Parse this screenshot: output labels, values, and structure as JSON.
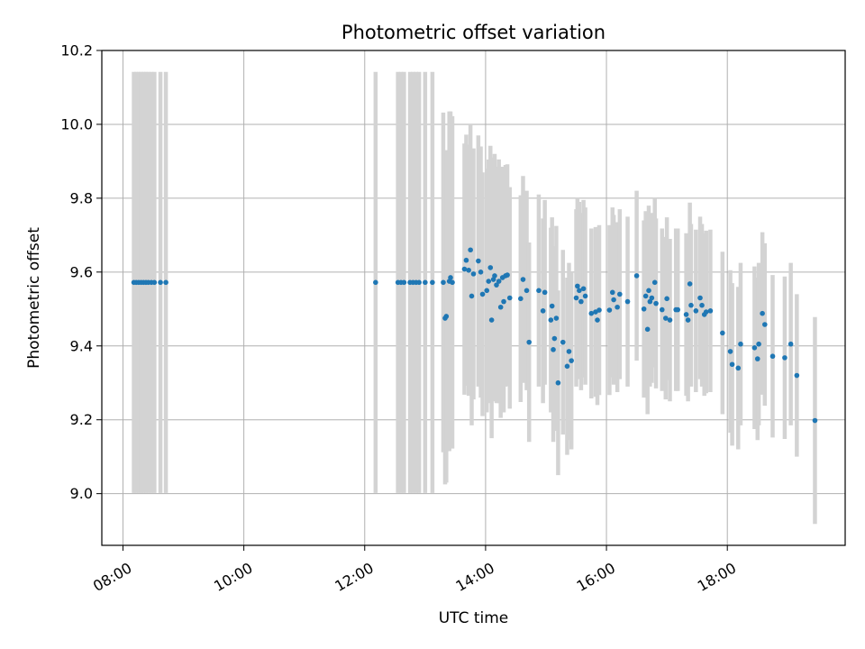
{
  "chart_data": {
    "type": "scatter",
    "title": "Photometric offset variation",
    "xlabel": "UTC time",
    "ylabel": "Photometric offset",
    "x_unit": "hours UTC",
    "xlim": [
      7.65,
      19.95
    ],
    "ylim": [
      8.86,
      10.2
    ],
    "x_ticks": [
      8,
      10,
      12,
      14,
      16,
      18
    ],
    "x_tick_labels": [
      "08:00",
      "10:00",
      "12:00",
      "14:00",
      "16:00",
      "18:00"
    ],
    "y_ticks": [
      9.0,
      9.2,
      9.4,
      9.6,
      9.8,
      10.0,
      10.2
    ],
    "y_tick_labels": [
      "9.0",
      "9.2",
      "9.4",
      "9.6",
      "9.8",
      "10.0",
      "10.2"
    ],
    "grid": true,
    "point_color": "#1f77b4",
    "errorbar_color": "#d3d3d3",
    "points": [
      [
        8.18,
        9.572,
        0.57
      ],
      [
        8.22,
        9.572,
        0.57
      ],
      [
        8.26,
        9.572,
        0.57
      ],
      [
        8.3,
        9.572,
        0.57
      ],
      [
        8.34,
        9.572,
        0.57
      ],
      [
        8.38,
        9.572,
        0.57
      ],
      [
        8.42,
        9.572,
        0.57
      ],
      [
        8.47,
        9.572,
        0.57
      ],
      [
        8.52,
        9.572,
        0.57
      ],
      [
        8.62,
        9.572,
        0.57
      ],
      [
        8.71,
        9.572,
        0.57
      ],
      [
        12.18,
        9.572,
        0.57
      ],
      [
        12.55,
        9.572,
        0.57
      ],
      [
        12.6,
        9.572,
        0.57
      ],
      [
        12.65,
        9.572,
        0.57
      ],
      [
        12.75,
        9.572,
        0.57
      ],
      [
        12.8,
        9.572,
        0.57
      ],
      [
        12.85,
        9.572,
        0.57
      ],
      [
        12.9,
        9.572,
        0.57
      ],
      [
        13.0,
        9.572,
        0.57
      ],
      [
        13.12,
        9.572,
        0.57
      ],
      [
        13.3,
        9.572,
        0.46
      ],
      [
        13.33,
        9.475,
        0.45
      ],
      [
        13.35,
        9.48,
        0.45
      ],
      [
        13.4,
        9.575,
        0.46
      ],
      [
        13.42,
        9.585,
        0.45
      ],
      [
        13.45,
        9.572,
        0.45
      ],
      [
        13.65,
        9.608,
        0.34
      ],
      [
        13.68,
        9.632,
        0.34
      ],
      [
        13.72,
        9.605,
        0.34
      ],
      [
        13.75,
        9.66,
        0.34
      ],
      [
        13.77,
        9.535,
        0.35
      ],
      [
        13.8,
        9.595,
        0.34
      ],
      [
        13.88,
        9.63,
        0.34
      ],
      [
        13.92,
        9.6,
        0.34
      ],
      [
        13.95,
        9.54,
        0.33
      ],
      [
        14.02,
        9.55,
        0.33
      ],
      [
        14.05,
        9.575,
        0.33
      ],
      [
        14.08,
        9.612,
        0.33
      ],
      [
        14.1,
        9.47,
        0.32
      ],
      [
        14.13,
        9.58,
        0.33
      ],
      [
        14.15,
        9.59,
        0.33
      ],
      [
        14.18,
        9.565,
        0.32
      ],
      [
        14.22,
        9.575,
        0.33
      ],
      [
        14.25,
        9.505,
        0.3
      ],
      [
        14.28,
        9.585,
        0.3
      ],
      [
        14.3,
        9.52,
        0.3
      ],
      [
        14.33,
        9.59,
        0.3
      ],
      [
        14.36,
        9.592,
        0.3
      ],
      [
        14.4,
        9.53,
        0.3
      ],
      [
        14.58,
        9.528,
        0.28
      ],
      [
        14.62,
        9.58,
        0.28
      ],
      [
        14.68,
        9.55,
        0.27
      ],
      [
        14.72,
        9.41,
        0.27
      ],
      [
        14.88,
        9.55,
        0.26
      ],
      [
        14.95,
        9.495,
        0.25
      ],
      [
        14.98,
        9.545,
        0.25
      ],
      [
        15.08,
        9.47,
        0.25
      ],
      [
        15.1,
        9.508,
        0.24
      ],
      [
        15.12,
        9.39,
        0.25
      ],
      [
        15.14,
        9.42,
        0.25
      ],
      [
        15.17,
        9.475,
        0.25
      ],
      [
        15.2,
        9.3,
        0.25
      ],
      [
        15.28,
        9.41,
        0.25
      ],
      [
        15.35,
        9.345,
        0.24
      ],
      [
        15.38,
        9.385,
        0.24
      ],
      [
        15.42,
        9.36,
        0.24
      ],
      [
        15.5,
        9.53,
        0.24
      ],
      [
        15.52,
        9.562,
        0.24
      ],
      [
        15.55,
        9.55,
        0.24
      ],
      [
        15.58,
        9.52,
        0.24
      ],
      [
        15.62,
        9.555,
        0.24
      ],
      [
        15.65,
        9.535,
        0.24
      ],
      [
        15.75,
        9.488,
        0.23
      ],
      [
        15.82,
        9.492,
        0.23
      ],
      [
        15.85,
        9.47,
        0.23
      ],
      [
        15.88,
        9.497,
        0.23
      ],
      [
        16.05,
        9.497,
        0.23
      ],
      [
        16.1,
        9.545,
        0.23
      ],
      [
        16.12,
        9.525,
        0.23
      ],
      [
        16.18,
        9.505,
        0.23
      ],
      [
        16.22,
        9.54,
        0.23
      ],
      [
        16.35,
        9.52,
        0.23
      ],
      [
        16.5,
        9.59,
        0.23
      ],
      [
        16.62,
        9.5,
        0.24
      ],
      [
        16.65,
        9.535,
        0.23
      ],
      [
        16.68,
        9.445,
        0.23
      ],
      [
        16.7,
        9.55,
        0.23
      ],
      [
        16.72,
        9.52,
        0.23
      ],
      [
        16.75,
        9.53,
        0.23
      ],
      [
        16.8,
        9.572,
        0.23
      ],
      [
        16.82,
        9.515,
        0.23
      ],
      [
        16.92,
        9.498,
        0.22
      ],
      [
        16.98,
        9.475,
        0.22
      ],
      [
        17.0,
        9.528,
        0.22
      ],
      [
        17.05,
        9.47,
        0.22
      ],
      [
        17.15,
        9.498,
        0.22
      ],
      [
        17.18,
        9.498,
        0.22
      ],
      [
        17.32,
        9.485,
        0.22
      ],
      [
        17.35,
        9.47,
        0.22
      ],
      [
        17.38,
        9.568,
        0.22
      ],
      [
        17.4,
        9.51,
        0.22
      ],
      [
        17.48,
        9.495,
        0.22
      ],
      [
        17.55,
        9.53,
        0.22
      ],
      [
        17.58,
        9.51,
        0.22
      ],
      [
        17.62,
        9.485,
        0.22
      ],
      [
        17.65,
        9.492,
        0.22
      ],
      [
        17.72,
        9.495,
        0.22
      ],
      [
        17.92,
        9.435,
        0.22
      ],
      [
        18.05,
        9.385,
        0.22
      ],
      [
        18.08,
        9.35,
        0.22
      ],
      [
        18.18,
        9.34,
        0.22
      ],
      [
        18.22,
        9.405,
        0.22
      ],
      [
        18.45,
        9.395,
        0.22
      ],
      [
        18.5,
        9.365,
        0.22
      ],
      [
        18.52,
        9.405,
        0.22
      ],
      [
        18.58,
        9.488,
        0.22
      ],
      [
        18.62,
        9.458,
        0.22
      ],
      [
        18.75,
        9.372,
        0.22
      ],
      [
        18.95,
        9.368,
        0.22
      ],
      [
        19.05,
        9.405,
        0.22
      ],
      [
        19.15,
        9.32,
        0.22
      ],
      [
        19.45,
        9.198,
        0.28
      ]
    ]
  }
}
